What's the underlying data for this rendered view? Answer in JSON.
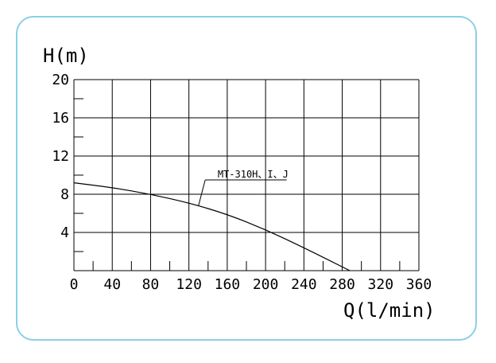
{
  "chart_data": {
    "type": "line",
    "title": "",
    "xlabel": "Q(l/min)",
    "ylabel": "H(m)",
    "xlim": [
      0,
      360
    ],
    "ylim": [
      0,
      20
    ],
    "x_ticks": [
      "0",
      "40",
      "80",
      "120",
      "160",
      "200",
      "240",
      "280",
      "320",
      "360"
    ],
    "y_ticks": [
      "4",
      "8",
      "12",
      "16",
      "20"
    ],
    "grid": true,
    "series": [
      {
        "name": "MT-310H、I、J",
        "x": [
          0,
          40,
          80,
          120,
          160,
          200,
          240,
          280,
          288
        ],
        "y": [
          9.2,
          8.7,
          8.0,
          7.1,
          5.9,
          4.3,
          2.4,
          0.4,
          0
        ],
        "color": "#000000"
      }
    ]
  },
  "colors": {
    "frame_border": "#8ccfe8",
    "line": "#000000"
  }
}
